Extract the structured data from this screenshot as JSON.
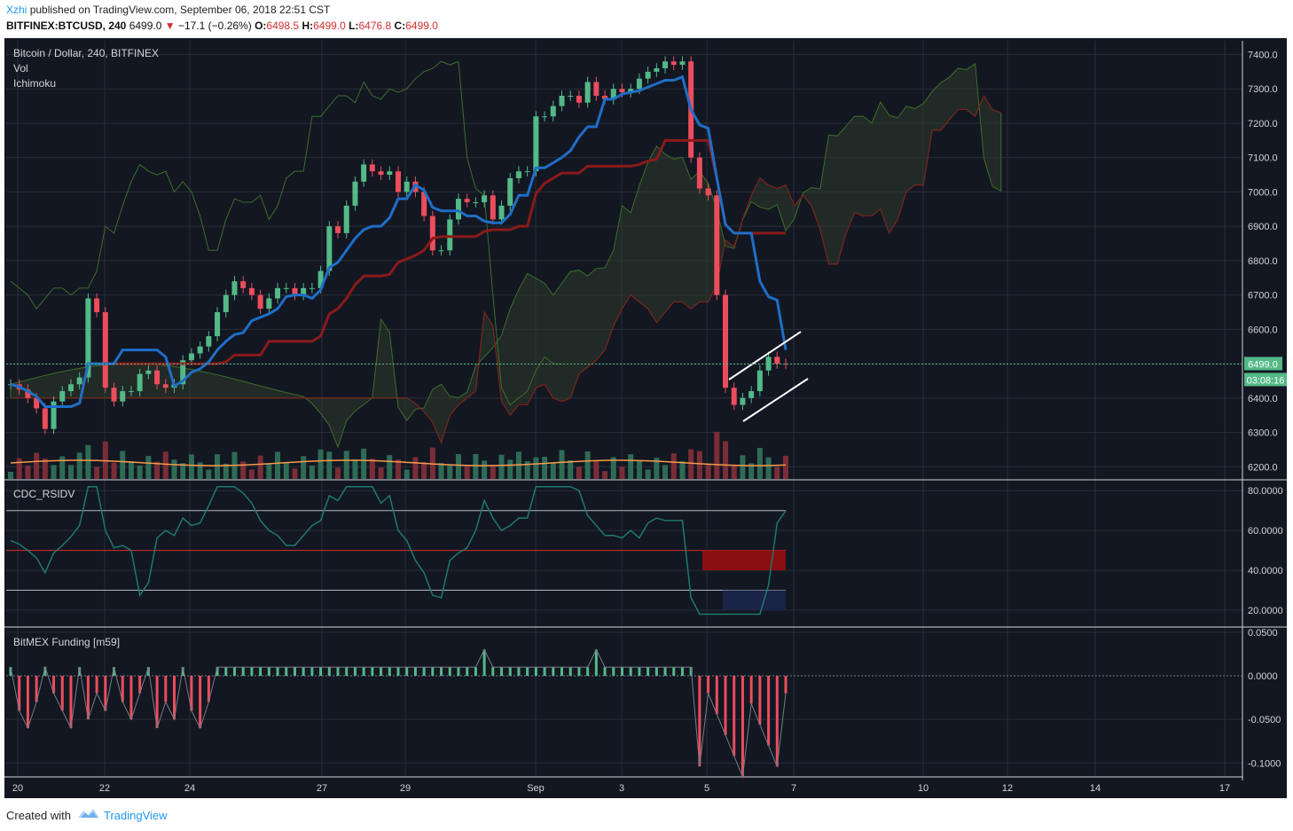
{
  "header": {
    "author": "Xzhi",
    "published_text": "published on TradingView.com, September 06, 2018 22:51 CST",
    "symbol": "BITFINEX:BTCUSD, 240",
    "last": "6499.0",
    "change": "−17.1 (−0.26%)",
    "o_label": "O:",
    "o_val": "6498.5",
    "h_label": "H:",
    "h_val": "6499.0",
    "l_label": "L:",
    "l_val": "6476.8",
    "c_label": "C:",
    "c_val": "6499.0"
  },
  "legend": {
    "title": "Bitcoin / Dollar, 240, BITFINEX",
    "vol": "Vol",
    "ichimoku": "Ichimoku",
    "rsi": "CDC_RSIDV",
    "funding": "BitMEX Funding [m59]"
  },
  "price_badge": "6499.0",
  "timer_badge": "03:08:16",
  "footer": {
    "created_with": "Created with",
    "brand": "TradingView"
  },
  "colors": {
    "bg": "#131722",
    "grid": "#2a2e39",
    "up": "#53b987",
    "down": "#eb4d5c",
    "tenkan": "#1e6ec8",
    "kijun": "#8b1a1a",
    "lagging": "#3c6e2a",
    "vol_ma": "#f59a4a",
    "rsi_line": "#1c7a6e",
    "accent": "#2196f3"
  },
  "chart_data": [
    {
      "type": "candlestick",
      "title": "Bitcoin / Dollar, 240, BITFINEX",
      "x_ticks": [
        "20",
        "22",
        "24",
        "27",
        "29",
        "Sep",
        "3",
        "5",
        "7",
        "10",
        "12",
        "14",
        "17"
      ],
      "y_ticks": [
        "7400.0",
        "7300.0",
        "7200.0",
        "7100.0",
        "7000.0",
        "6900.0",
        "6800.0",
        "6700.0",
        "6600.0",
        "6500.0",
        "6400.0",
        "6300.0",
        "6200.0"
      ],
      "ylim": [
        6180,
        7440
      ],
      "last_price": 6499.0,
      "close_series": [
        6440,
        6425,
        6400,
        6370,
        6310,
        6390,
        6420,
        6440,
        6460,
        6690,
        6650,
        6430,
        6390,
        6420,
        6420,
        6470,
        6480,
        6440,
        6430,
        6440,
        6510,
        6530,
        6550,
        6580,
        6650,
        6700,
        6740,
        6720,
        6700,
        6660,
        6690,
        6720,
        6720,
        6700,
        6720,
        6720,
        6770,
        6900,
        6880,
        6960,
        7030,
        7080,
        7060,
        7050,
        7060,
        7000,
        7030,
        7000,
        6930,
        6830,
        6830,
        6920,
        6980,
        6970,
        6970,
        6990,
        6920,
        6960,
        7040,
        7060,
        7060,
        7220,
        7220,
        7250,
        7280,
        7280,
        7260,
        7320,
        7280,
        7270,
        7300,
        7290,
        7300,
        7330,
        7350,
        7360,
        7380,
        7370,
        7380,
        7100,
        7010,
        6990,
        6700,
        6430,
        6380,
        6400,
        6420,
        6480,
        6520,
        6500,
        6499
      ],
      "volume_ma_note": "orange moving average of volume",
      "ichimoku": {
        "tenkan_note": "blue conversion line",
        "kijun_note": "dark red base line",
        "cloud_colors": [
          "#3b1c24",
          "#1f3b2a"
        ]
      }
    },
    {
      "type": "line",
      "title": "CDC_RSIDV",
      "y_ticks": [
        "80.0000",
        "60.0000",
        "40.0000",
        "20.0000"
      ],
      "ylim": [
        12,
        85
      ],
      "levels": [
        70,
        50,
        30
      ]
    },
    {
      "type": "bar",
      "title": "BitMEX Funding [m59]",
      "y_ticks": [
        "0.0500",
        "0.0000",
        "-0.0500",
        "-0.1000"
      ],
      "ylim": [
        -0.115,
        0.055
      ]
    }
  ]
}
